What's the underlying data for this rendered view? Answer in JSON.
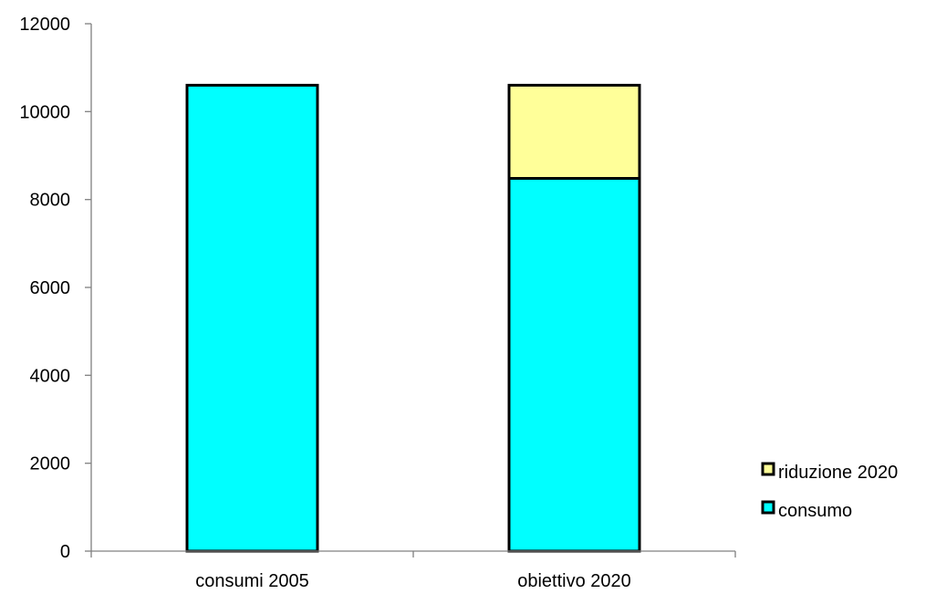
{
  "chart_data": {
    "type": "bar",
    "stacked": true,
    "categories": [
      "consumi 2005",
      "obiettivo 2020"
    ],
    "series": [
      {
        "name": "consumo",
        "values": [
          10600,
          8480
        ],
        "color": "#00FFFF"
      },
      {
        "name": "riduzione 2020",
        "values": [
          0,
          2120
        ],
        "color": "#FFFF99"
      }
    ],
    "ylim": [
      0,
      12000
    ],
    "yticks": [
      0,
      2000,
      4000,
      6000,
      8000,
      10000,
      12000
    ],
    "grid": false,
    "legend_position": "right",
    "legend_order": [
      "riduzione 2020",
      "consumo"
    ],
    "title": "",
    "xlabel": "",
    "ylabel": ""
  }
}
